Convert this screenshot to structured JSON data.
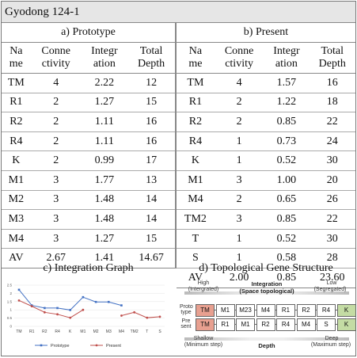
{
  "title": "Gyodong  124-1",
  "prototype": {
    "caption": "a)  Prototype",
    "headers": [
      [
        "Na",
        "me"
      ],
      [
        "Conne",
        "ctivity"
      ],
      [
        "Integr",
        "ation"
      ],
      [
        "Total",
        "Depth"
      ]
    ],
    "rows": [
      [
        "TM",
        "4",
        "2.22",
        "12"
      ],
      [
        "R1",
        "2",
        "1.27",
        "15"
      ],
      [
        "R2",
        "2",
        "1.11",
        "16"
      ],
      [
        "R4",
        "2",
        "1.11",
        "16"
      ],
      [
        "K",
        "2",
        "0.99",
        "17"
      ],
      [
        "M1",
        "3",
        "1.77",
        "13"
      ],
      [
        "M2",
        "3",
        "1.48",
        "14"
      ],
      [
        "M3",
        "3",
        "1.48",
        "14"
      ],
      [
        "M4",
        "3",
        "1.27",
        "15"
      ],
      [
        "AV",
        "2.67",
        "1.41",
        "14.67"
      ]
    ]
  },
  "present": {
    "caption": "b)  Present",
    "headers": [
      [
        "Na",
        "me"
      ],
      [
        "Conne",
        "ctivity"
      ],
      [
        "Integr",
        "ation"
      ],
      [
        "Total",
        "Depth"
      ]
    ],
    "rows": [
      [
        "TM",
        "4",
        "1.57",
        "16"
      ],
      [
        "R1",
        "2",
        "1.22",
        "18"
      ],
      [
        "R2",
        "2",
        "0.85",
        "22"
      ],
      [
        "R4",
        "1",
        "0.73",
        "24"
      ],
      [
        "K",
        "1",
        "0.52",
        "30"
      ],
      [
        "M1",
        "3",
        "1.00",
        "20"
      ],
      [
        "M4",
        "2",
        "0.65",
        "26"
      ],
      [
        "TM2",
        "3",
        "0.85",
        "22"
      ],
      [
        "T",
        "1",
        "0.52",
        "30"
      ],
      [
        "S",
        "1",
        "0.58",
        "28"
      ],
      [
        "AV",
        "2.00",
        "0.85",
        "23.60"
      ]
    ]
  },
  "graph_caption": "c)  Integration  Graph",
  "gene_caption": "d)  Topological  Gene  Structure",
  "chart_data": {
    "type": "line",
    "categories": [
      "TM",
      "R1",
      "R2",
      "R4",
      "K",
      "M1",
      "M2",
      "M3",
      "M4",
      "TM2",
      "T",
      "S"
    ],
    "series": [
      {
        "name": "Prototype",
        "values": [
          2.22,
          1.27,
          1.11,
          1.11,
          0.99,
          1.77,
          1.48,
          1.48,
          1.27,
          null,
          null,
          null
        ],
        "color": "#4472c4"
      },
      {
        "name": "Present",
        "values": [
          1.57,
          1.22,
          0.85,
          0.73,
          0.52,
          1.0,
          null,
          null,
          0.65,
          0.85,
          0.52,
          0.58
        ],
        "color": "#c0504d"
      }
    ],
    "yticks": [
      "2.5",
      "2",
      "1.5",
      "1",
      "0.5",
      "0"
    ],
    "ylim": [
      0,
      2.5
    ]
  },
  "gene": {
    "high": "High",
    "high_sub": "(Intergrated)",
    "integration": "Integration",
    "integration_sub": "(Space topological)",
    "low": "Low",
    "low_sub": "(Segregated)",
    "proto_label": [
      "Proto",
      "type"
    ],
    "present_label": [
      "Pre",
      "sent"
    ],
    "proto_row": [
      "TM",
      "M1",
      "M23",
      "M4",
      "R1",
      "R2",
      "R4",
      "K"
    ],
    "present_row": [
      "TM",
      "R1",
      "M1",
      "R2",
      "R4",
      "M4",
      "S",
      "K"
    ],
    "shallow": "Shallow",
    "shallow_sub": "(Minimum step)",
    "depth": "Depth",
    "deep": "Deep",
    "deep_sub": "(Maximum step)",
    "colors": {
      "tm": "#e8a090",
      "k": "#c4dca4"
    }
  }
}
